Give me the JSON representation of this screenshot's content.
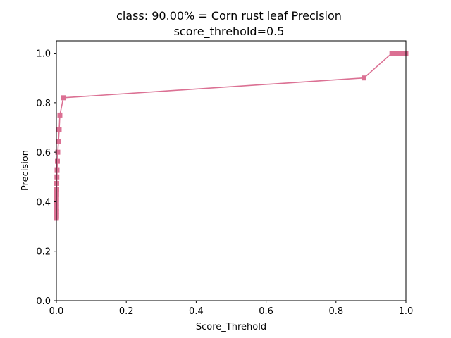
{
  "chart_data": {
    "type": "line",
    "title": "class: 90.00% = Corn rust leaf Precision",
    "subtitle": "score_threhold=0.5",
    "xlabel": "Score_Threhold",
    "ylabel": "Precision",
    "xlim": [
      0,
      1
    ],
    "ylim": [
      0,
      1.05
    ],
    "xticks": [
      0,
      0.2,
      0.4,
      0.6,
      0.8,
      1.0
    ],
    "xtick_labels": [
      "0.0",
      "0.2",
      "0.4",
      "0.6",
      "0.8",
      "1.0"
    ],
    "yticks": [
      0,
      0.2,
      0.4,
      0.6,
      0.8,
      1.0
    ],
    "ytick_labels": [
      "0.0",
      "0.2",
      "0.4",
      "0.6",
      "0.8",
      "1.0"
    ],
    "grid": false,
    "legend": "none",
    "line_color": "#db7093",
    "marker": "square",
    "series": [
      {
        "x": [
          1.0,
          0.995,
          0.99,
          0.985,
          0.98,
          0.975,
          0.97,
          0.965,
          0.96,
          0.88,
          0.02,
          0.01,
          0.008,
          0.006,
          0.004,
          0.003,
          0.002,
          0.0015,
          0.001,
          0.001,
          0.0008,
          0.0006,
          0.0005,
          0.0004,
          0.0004,
          0.0003,
          0.0003,
          0.0002,
          0.0002,
          0.0001,
          0.0001,
          0.0001,
          0.0,
          0.0
        ],
        "y": [
          1.0,
          1.0,
          1.0,
          1.0,
          1.0,
          1.0,
          1.0,
          1.0,
          1.0,
          0.9,
          0.82,
          0.75,
          0.69,
          0.643,
          0.6,
          0.563,
          0.529,
          0.5,
          0.474,
          0.45,
          0.429,
          0.41,
          0.391,
          0.375,
          0.36,
          0.346,
          0.34,
          0.335,
          0.355,
          0.37,
          0.38,
          0.36,
          0.345,
          0.333
        ]
      }
    ]
  }
}
